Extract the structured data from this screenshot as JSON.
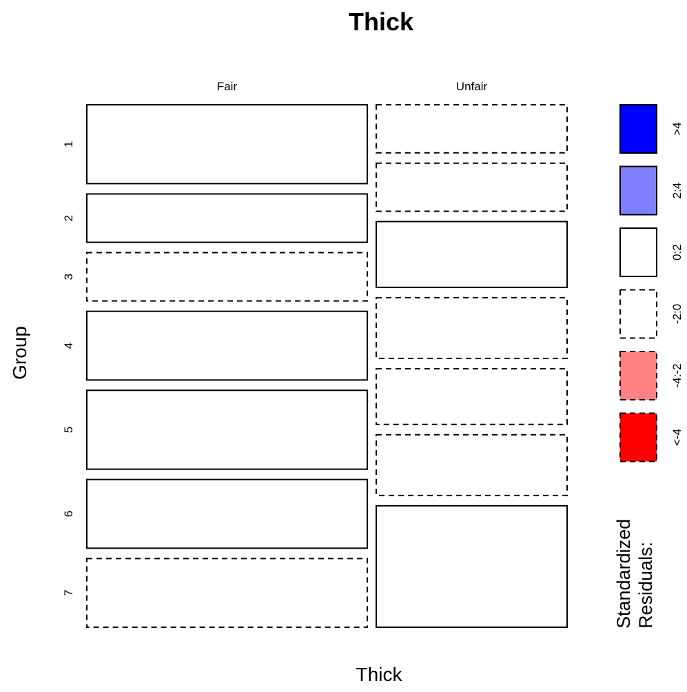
{
  "chart_data": {
    "type": "mosaic",
    "title": "Thick",
    "xlabel": "Thick",
    "ylabel": "Group",
    "columns": [
      "Fair",
      "Unfair"
    ],
    "rows": [
      "1",
      "2",
      "3",
      "4",
      "5",
      "6",
      "7"
    ],
    "column_widths": [
      0.595,
      0.405
    ],
    "cells": {
      "Fair": [
        {
          "row": "1",
          "share": 0.155,
          "residual_sign": "positive",
          "residual_class": "0:2"
        },
        {
          "row": "2",
          "share": 0.095,
          "residual_sign": "positive",
          "residual_class": "0:2"
        },
        {
          "row": "3",
          "share": 0.095,
          "residual_sign": "negative",
          "residual_class": "-2:0"
        },
        {
          "row": "4",
          "share": 0.135,
          "residual_sign": "positive",
          "residual_class": "0:2"
        },
        {
          "row": "5",
          "share": 0.155,
          "residual_sign": "positive",
          "residual_class": "0:2"
        },
        {
          "row": "6",
          "share": 0.135,
          "residual_sign": "positive",
          "residual_class": "0:2"
        },
        {
          "row": "7",
          "share": 0.135,
          "residual_sign": "negative",
          "residual_class": "-2:0"
        }
      ],
      "Unfair": [
        {
          "row": "1",
          "share": 0.095,
          "residual_sign": "negative",
          "residual_class": "-2:0"
        },
        {
          "row": "2",
          "share": 0.095,
          "residual_sign": "negative",
          "residual_class": "-2:0"
        },
        {
          "row": "3",
          "share": 0.13,
          "residual_sign": "positive",
          "residual_class": "0:2"
        },
        {
          "row": "4",
          "share": 0.12,
          "residual_sign": "negative",
          "residual_class": "-2:0"
        },
        {
          "row": "5",
          "share": 0.11,
          "residual_sign": "negative",
          "residual_class": "-2:0"
        },
        {
          "row": "6",
          "share": 0.12,
          "residual_sign": "negative",
          "residual_class": "-2:0"
        },
        {
          "row": "7",
          "share": 0.24,
          "residual_sign": "positive",
          "residual_class": "0:2"
        }
      ]
    },
    "legend": {
      "title_line1": "Standardized",
      "title_line2": "Residuals:",
      "placement": "right",
      "items": [
        {
          "label": ">4",
          "color": "#0000ff",
          "dashed": false
        },
        {
          "label": "2:4",
          "color": "#8080ff",
          "dashed": false
        },
        {
          "label": "0:2",
          "color": "#ffffff",
          "dashed": false
        },
        {
          "label": "-2:0",
          "color": "#ffffff",
          "dashed": true
        },
        {
          "label": "-4:-2",
          "color": "#ff8080",
          "dashed": true
        },
        {
          "label": "<-4",
          "color": "#ff0000",
          "dashed": true
        }
      ]
    }
  }
}
